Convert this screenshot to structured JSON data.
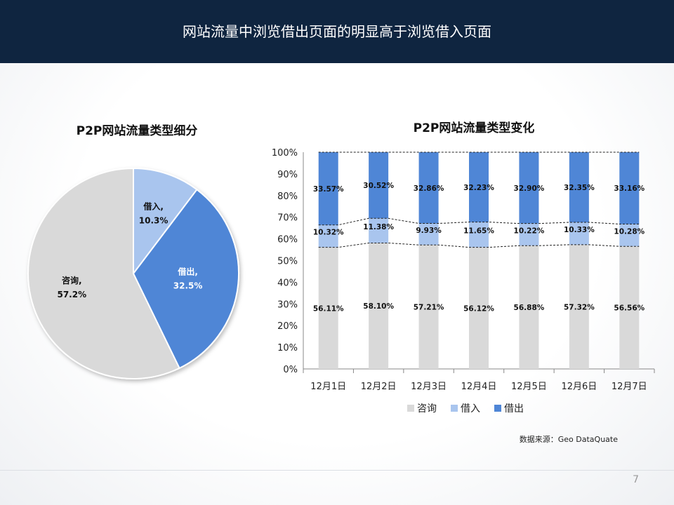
{
  "header": {
    "title": "网站流量中浏览借出页面的明显高于浏览借入页面"
  },
  "source": "数据来源：Geo  DataQuate",
  "page_number": "7",
  "colors": {
    "consult": "#d9d9d9",
    "borrow_in": "#a9c5ee",
    "lend_out": "#4f86d6",
    "header_bg": "#0f2540"
  },
  "chart_data": [
    {
      "type": "pie",
      "title": "P2P网站流量类型细分",
      "slices": [
        {
          "name": "借入",
          "label": "借入,",
          "value": 10.3,
          "value_label": "10.3%"
        },
        {
          "name": "借出",
          "label": "借出,",
          "value": 32.5,
          "value_label": "32.5%"
        },
        {
          "name": "咨询",
          "label": "咨询,",
          "value": 57.2,
          "value_label": "57.2%"
        }
      ]
    },
    {
      "type": "bar",
      "stacked": true,
      "title": "P2P网站流量类型变化",
      "categories": [
        "12月1日",
        "12月2日",
        "12月3日",
        "12月4日",
        "12月5日",
        "12月6日",
        "12月7日"
      ],
      "y_ticks": [
        "0%",
        "10%",
        "20%",
        "30%",
        "40%",
        "50%",
        "60%",
        "70%",
        "80%",
        "90%",
        "100%"
      ],
      "ylim": [
        0,
        100
      ],
      "legend_position": "bottom",
      "series": [
        {
          "name": "咨询",
          "values": [
            56.11,
            58.1,
            57.21,
            56.12,
            56.88,
            57.32,
            56.56
          ],
          "labels": [
            "56.11%",
            "58.10%",
            "57.21%",
            "56.12%",
            "56.88%",
            "57.32%",
            "56.56%"
          ]
        },
        {
          "name": "借入",
          "values": [
            10.32,
            11.38,
            9.93,
            11.65,
            10.22,
            10.33,
            10.28
          ],
          "labels": [
            "10.32%",
            "11.38%",
            "9.93%",
            "11.65%",
            "10.22%",
            "10.33%",
            "10.28%"
          ]
        },
        {
          "name": "借出",
          "values": [
            33.57,
            30.52,
            32.86,
            32.23,
            32.9,
            32.35,
            33.16
          ],
          "labels": [
            "33.57%",
            "30.52%",
            "32.86%",
            "32.23%",
            "32.90%",
            "32.35%",
            "33.16%"
          ]
        }
      ]
    }
  ]
}
